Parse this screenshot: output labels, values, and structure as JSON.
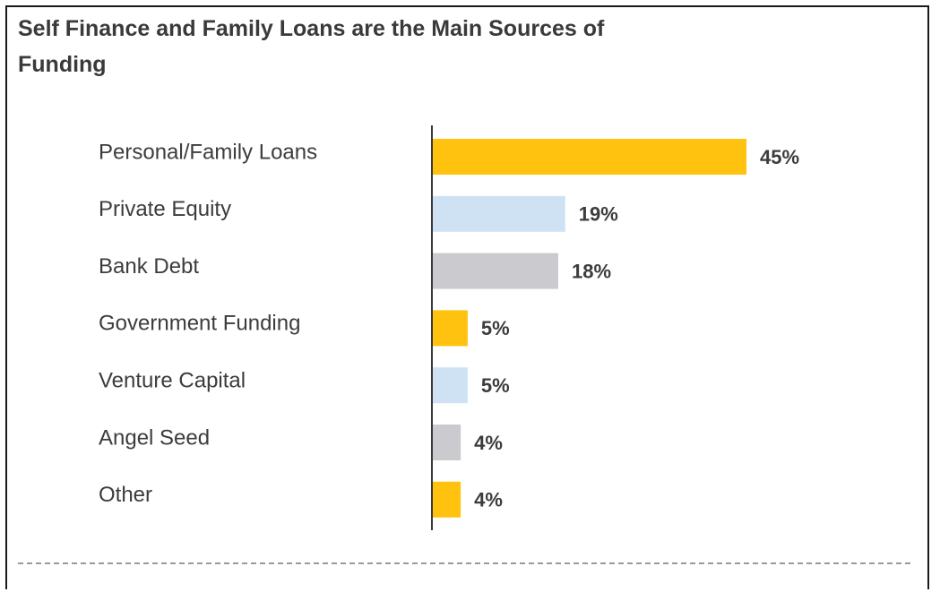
{
  "chart_data": {
    "type": "bar",
    "orientation": "horizontal",
    "title": "Self Finance and Family Loans are the Main Sources of Funding",
    "categories": [
      "Personal/Family Loans",
      "Private Equity",
      "Bank Debt",
      "Government Funding",
      "Venture Capital",
      "Angel Seed",
      "Other"
    ],
    "values": [
      45,
      19,
      18,
      5,
      5,
      4,
      4
    ],
    "value_labels": [
      "45%",
      "19%",
      "18%",
      "5%",
      "5%",
      "4%",
      "4%"
    ],
    "unit": "%",
    "colors": [
      "#FFC20E",
      "#CFE2F3",
      "#CBCBCF",
      "#FFC20E",
      "#CFE2F3",
      "#CBCBCF",
      "#FFC20E"
    ],
    "xlim": [
      0,
      45
    ],
    "grid": false,
    "legend": "none"
  }
}
